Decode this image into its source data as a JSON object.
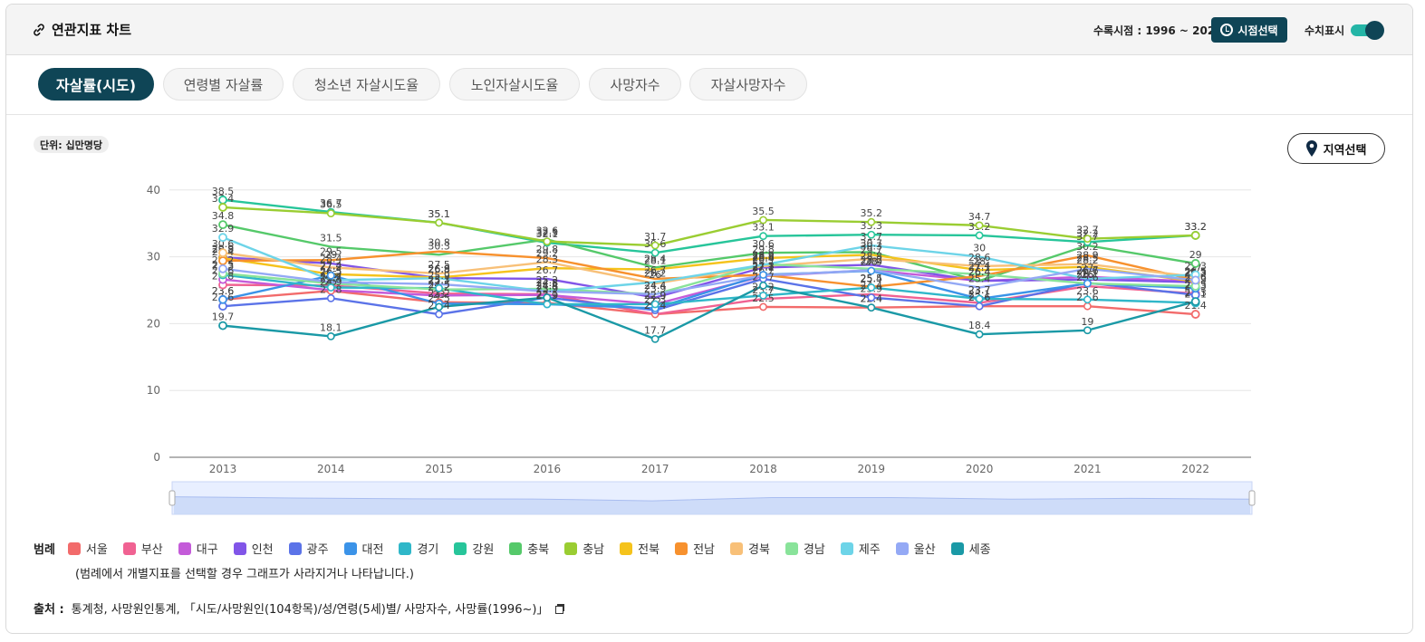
{
  "header": {
    "title": "연관지표 차트",
    "period_label": "수록시점 : 1996 ~ 2022",
    "period_button": "시점선택",
    "toggle_label": "수치표시"
  },
  "tabs": [
    {
      "label": "자살률(시도)",
      "active": true
    },
    {
      "label": "연령별 자살률",
      "active": false
    },
    {
      "label": "청소년 자살시도율",
      "active": false
    },
    {
      "label": "노인자살시도율",
      "active": false
    },
    {
      "label": "사망자수",
      "active": false
    },
    {
      "label": "자살사망자수",
      "active": false
    }
  ],
  "unit_label": "단위: 십만명당",
  "region_button": "지역선택",
  "legend": {
    "title": "범례",
    "note": "(범례에서 개별지표를 선택할 경우 그래프가 사라지거나 나타납니다.)"
  },
  "source": {
    "label": "출처 :",
    "text": "통계청, 사망원인통계, 「시도/사망원인(104항목)/성/연령(5세)별/ 사망자수, 사망률(1996~)」"
  },
  "chart_data": {
    "type": "line",
    "categories": [
      "2013",
      "2014",
      "2015",
      "2016",
      "2017",
      "2018",
      "2019",
      "2020",
      "2021",
      "2022"
    ],
    "yticks": [
      0,
      10,
      20,
      30,
      40
    ],
    "ylim": [
      0,
      42
    ],
    "grid": true,
    "series": [
      {
        "name": "서울",
        "color": "#f26b6b",
        "values": [
          23.6,
          24.9,
          23.2,
          23.1,
          21.4,
          22.5,
          22.4,
          22.6,
          22.6,
          21.4
        ]
      },
      {
        "name": "부산",
        "color": "#f06292",
        "values": [
          25.8,
          25.7,
          24.5,
          24.4,
          21.4,
          23.7,
          24.4,
          23.1,
          25.6,
          24.5
        ]
      },
      {
        "name": "대구",
        "color": "#c45bd9",
        "values": [
          26.6,
          25.0,
          24.2,
          24.3,
          22.9,
          27.1,
          28.0,
          26.4,
          27.0,
          26.3
        ]
      },
      {
        "name": "인천",
        "color": "#8155e8",
        "values": [
          29.9,
          29.0,
          26.8,
          26.7,
          23.9,
          28.4,
          28.8,
          26.4,
          26.6,
          26.2
        ]
      },
      {
        "name": "광주",
        "color": "#5b73e8",
        "values": [
          22.6,
          23.8,
          21.4,
          23.9,
          22.0,
          26.7,
          23.9,
          22.6,
          26.1,
          24.3
        ]
      },
      {
        "name": "대전",
        "color": "#3b93e8",
        "values": [
          23.6,
          27.2,
          23.0,
          22.9,
          22.3,
          27.3,
          27.9,
          23.7,
          26.0,
          25.3
        ]
      },
      {
        "name": "경기",
        "color": "#2fb7c9",
        "values": [
          27.3,
          25.4,
          25.3,
          22.9,
          22.9,
          24.2,
          25.4,
          23.7,
          23.6,
          23.1
        ]
      },
      {
        "name": "강원",
        "color": "#27c59a",
        "values": [
          38.5,
          36.7,
          35.1,
          32.1,
          30.6,
          33.1,
          33.3,
          33.2,
          32.2,
          33.2
        ]
      },
      {
        "name": "충북",
        "color": "#55c96a",
        "values": [
          34.8,
          31.5,
          30.3,
          32.6,
          28.4,
          30.6,
          30.7,
          26.4,
          31.7,
          29.0
        ]
      },
      {
        "name": "충남",
        "color": "#9acd32",
        "values": [
          37.4,
          36.5,
          35.1,
          32.3,
          31.7,
          35.5,
          35.2,
          34.7,
          32.7,
          33.2
        ]
      },
      {
        "name": "전북",
        "color": "#f5c31c",
        "values": [
          29.8,
          27.4,
          26.9,
          28.3,
          28.1,
          29.8,
          30.3,
          28.0,
          28.5,
          26.3
        ]
      },
      {
        "name": "전남",
        "color": "#f7912e",
        "values": [
          29.4,
          29.5,
          30.8,
          29.8,
          26.7,
          27.3,
          25.5,
          27.1,
          30.2,
          26.5
        ]
      },
      {
        "name": "경북",
        "color": "#f8c078",
        "values": [
          30.6,
          28.4,
          27.5,
          29.2,
          26.0,
          28.6,
          29.7,
          28.6,
          28.9,
          27.0
        ]
      },
      {
        "name": "경남",
        "color": "#89e39a",
        "values": [
          27.5,
          26.0,
          25.1,
          25.2,
          24.4,
          28.9,
          28.2,
          27.4,
          26.0,
          25.6
        ]
      },
      {
        "name": "제주",
        "color": "#6dd4e8",
        "values": [
          32.9,
          26.5,
          26.8,
          24.8,
          26.2,
          28.8,
          31.7,
          30.0,
          26.7,
          27.3
        ]
      },
      {
        "name": "울산",
        "color": "#94a9f5",
        "values": [
          28.2,
          26.2,
          25.9,
          24.8,
          24.4,
          27.2,
          28.0,
          25.4,
          28.2,
          26.5
        ]
      },
      {
        "name": "세종",
        "color": "#1a99a6",
        "values": [
          19.7,
          18.1,
          22.5,
          23.9,
          17.7,
          25.7,
          22.4,
          18.4,
          19.0,
          23.3
        ]
      }
    ]
  }
}
